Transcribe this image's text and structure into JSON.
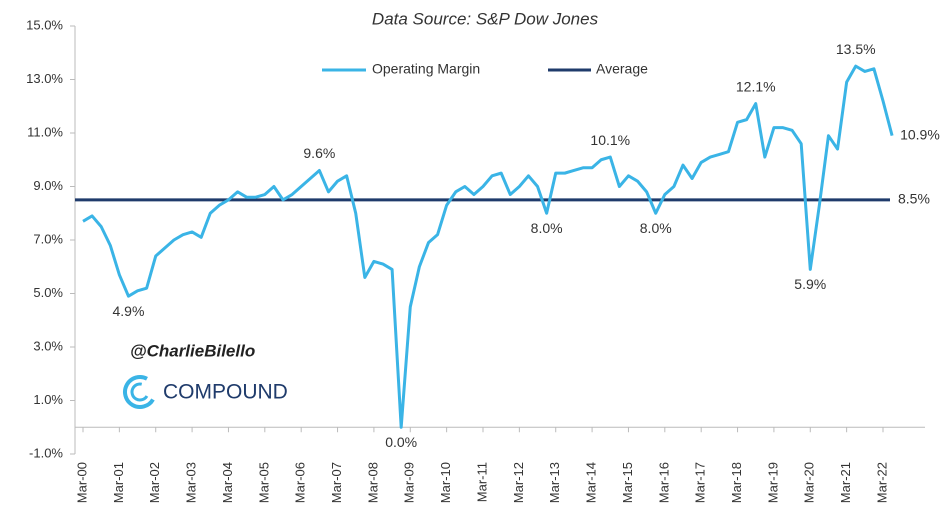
{
  "chart_data": {
    "type": "line",
    "title": "Data Source: S&P Dow Jones",
    "categories": [
      "Mar-00",
      null,
      null,
      null,
      "Mar-01",
      null,
      null,
      null,
      "Mar-02",
      null,
      null,
      null,
      "Mar-03",
      null,
      null,
      null,
      "Mar-04",
      null,
      null,
      null,
      "Mar-05",
      null,
      null,
      null,
      "Mar-06",
      null,
      null,
      null,
      "Mar-07",
      null,
      null,
      null,
      "Mar-08",
      null,
      null,
      null,
      "Mar-09",
      null,
      null,
      null,
      "Mar-10",
      null,
      null,
      null,
      "Mar-11",
      null,
      null,
      null,
      "Mar-12",
      null,
      null,
      null,
      "Mar-13",
      null,
      null,
      null,
      "Mar-14",
      null,
      null,
      null,
      "Mar-15",
      null,
      null,
      null,
      "Mar-16",
      null,
      null,
      null,
      "Mar-17",
      null,
      null,
      null,
      "Mar-18",
      null,
      null,
      null,
      "Mar-19",
      null,
      null,
      null,
      "Mar-20",
      null,
      null,
      null,
      "Mar-21",
      null,
      null,
      null,
      "Mar-22",
      null
    ],
    "series": [
      {
        "name": "Operating Margin",
        "color": "#3ab4e6",
        "values": [
          7.7,
          7.9,
          7.5,
          6.8,
          5.7,
          4.9,
          5.1,
          5.2,
          6.4,
          6.7,
          7.0,
          7.2,
          7.3,
          7.1,
          8.0,
          8.3,
          8.5,
          8.8,
          8.6,
          8.6,
          8.7,
          9.0,
          8.5,
          8.7,
          9.0,
          9.3,
          9.6,
          8.8,
          9.2,
          9.4,
          8.0,
          5.6,
          6.2,
          6.1,
          5.9,
          0.0,
          4.5,
          6.0,
          6.9,
          7.2,
          8.3,
          8.8,
          9.0,
          8.7,
          9.0,
          9.4,
          9.5,
          8.7,
          9.0,
          9.4,
          9.0,
          8.0,
          9.5,
          9.5,
          9.6,
          9.7,
          9.7,
          10.0,
          10.1,
          9.0,
          9.4,
          9.2,
          8.8,
          8.0,
          8.7,
          9.0,
          9.8,
          9.3,
          9.9,
          10.1,
          10.2,
          10.3,
          11.4,
          11.5,
          12.1,
          10.1,
          11.2,
          11.2,
          11.1,
          10.6,
          5.9,
          8.3,
          10.9,
          10.4,
          12.9,
          13.5,
          13.3,
          13.4,
          12.2,
          10.9
        ],
        "value_labels": [
          null,
          null,
          null,
          null,
          null,
          "4.9%",
          null,
          null,
          null,
          null,
          null,
          null,
          null,
          null,
          null,
          null,
          null,
          null,
          null,
          null,
          null,
          null,
          null,
          null,
          null,
          null,
          "9.6%",
          null,
          null,
          null,
          null,
          null,
          null,
          null,
          null,
          "0.0%",
          null,
          null,
          null,
          null,
          null,
          null,
          null,
          null,
          null,
          null,
          null,
          null,
          null,
          null,
          null,
          "8.0%",
          null,
          null,
          null,
          null,
          null,
          null,
          "10.1%",
          null,
          null,
          null,
          null,
          "8.0%",
          null,
          null,
          null,
          null,
          null,
          null,
          null,
          null,
          null,
          null,
          "12.1%",
          null,
          null,
          null,
          null,
          null,
          "5.9%",
          null,
          null,
          null,
          null,
          "13.5%",
          null,
          null,
          null,
          "10.9%"
        ]
      }
    ],
    "average": {
      "name": "Average",
      "value": 8.5,
      "label": "8.5%",
      "color": "#1f3b6b"
    },
    "ylim": [
      -1,
      15
    ],
    "yticks": [
      {
        "value": -1,
        "label": "-1.0%"
      },
      {
        "value": 1,
        "label": "1.0%"
      },
      {
        "value": 3,
        "label": "3.0%"
      },
      {
        "value": 5,
        "label": "5.0%"
      },
      {
        "value": 7,
        "label": "7.0%"
      },
      {
        "value": 9,
        "label": "9.0%"
      },
      {
        "value": 11,
        "label": "11.0%"
      },
      {
        "value": 13,
        "label": "13.0%"
      },
      {
        "value": 15,
        "label": "15.0%"
      }
    ],
    "grid": false,
    "legend": "top",
    "annotations": [
      "@CharlieBilello",
      "COMPOUND"
    ]
  }
}
